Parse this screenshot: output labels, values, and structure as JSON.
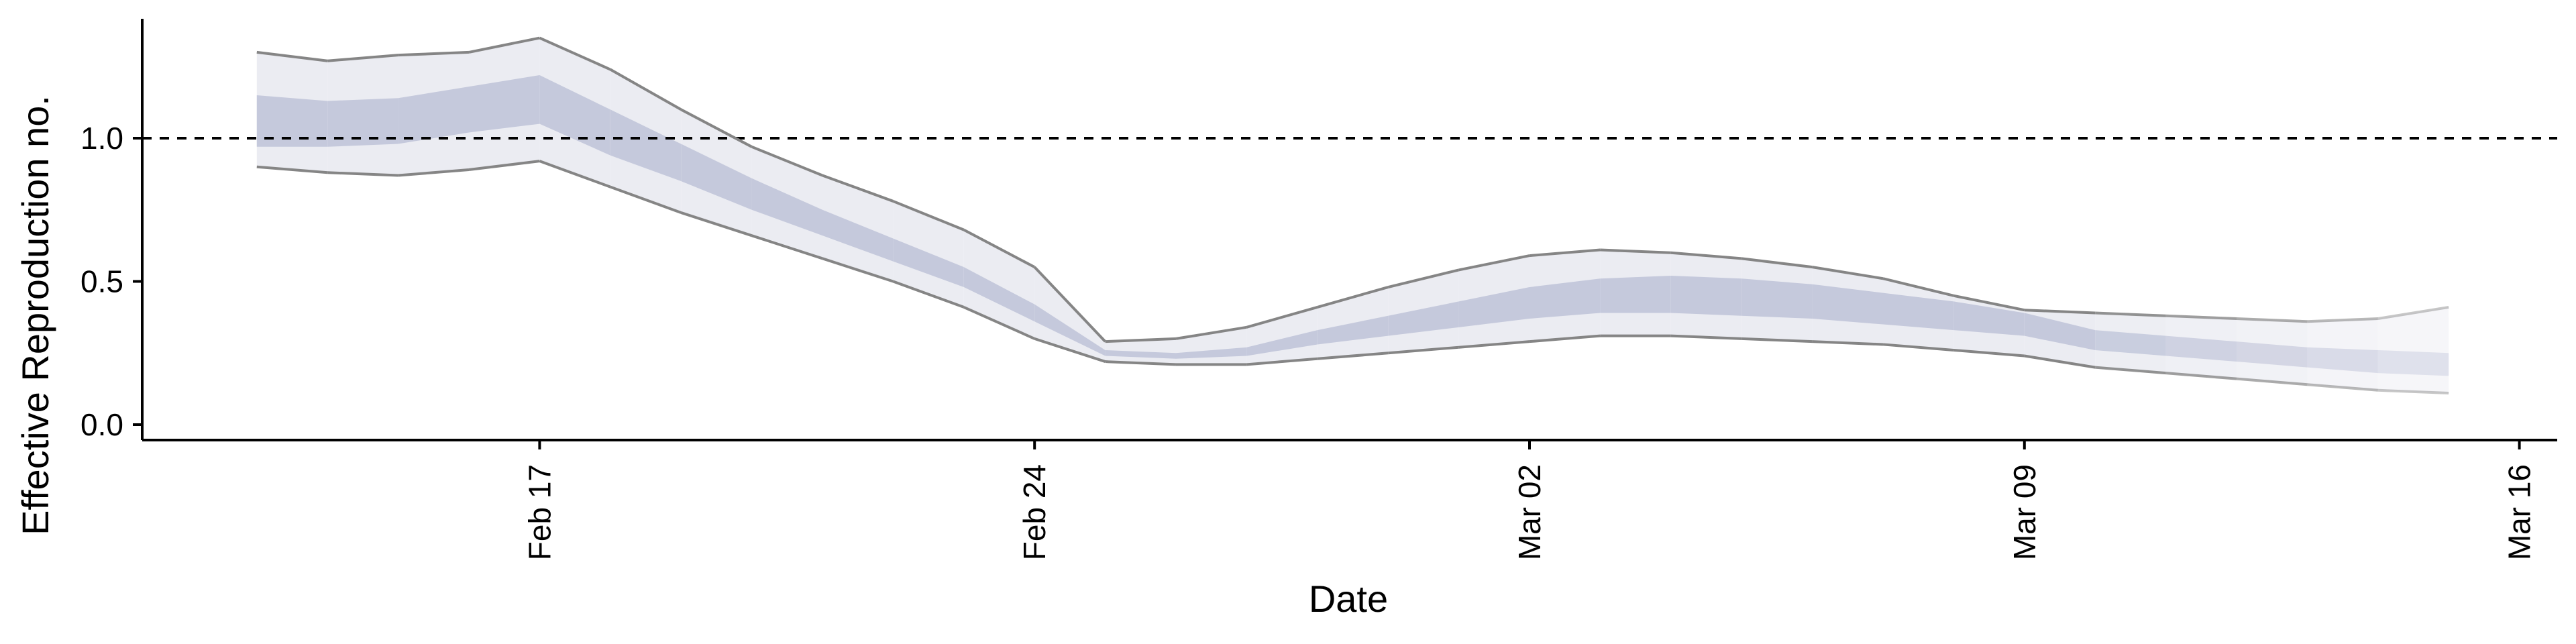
{
  "chart_data": {
    "type": "area",
    "title": "",
    "xlabel": "Date",
    "ylabel": "Effective Reproduction no.",
    "x_range": [
      "2020-02-11",
      "2020-03-16"
    ],
    "ylim": [
      0,
      1.4
    ],
    "grid": false,
    "legend": "none",
    "reference_line": {
      "y": 1.0,
      "style": "dashed"
    },
    "x_ticks": [
      {
        "date": "2020-02-17",
        "label": "Feb 17"
      },
      {
        "date": "2020-02-24",
        "label": "Feb 24"
      },
      {
        "date": "2020-03-02",
        "label": "Mar 02"
      },
      {
        "date": "2020-03-09",
        "label": "Mar 09"
      },
      {
        "date": "2020-03-16",
        "label": "Mar 16"
      }
    ],
    "y_ticks": [
      {
        "value": 0.0,
        "label": "0.0"
      },
      {
        "value": 0.5,
        "label": "0.5"
      },
      {
        "value": 1.0,
        "label": "1.0"
      }
    ],
    "colors": {
      "inner_band": "#c5c9dc",
      "outer_band": "#ebecf2",
      "outer_edge": "#858585",
      "axis": "#000000"
    },
    "series": [
      {
        "x": [
          "2020-02-13",
          "2020-02-14",
          "2020-02-15",
          "2020-02-16",
          "2020-02-17",
          "2020-02-18",
          "2020-02-19",
          "2020-02-20",
          "2020-02-21",
          "2020-02-22",
          "2020-02-23",
          "2020-02-24",
          "2020-02-25",
          "2020-02-26",
          "2020-02-27",
          "2020-02-28",
          "2020-02-29",
          "2020-03-01",
          "2020-03-02",
          "2020-03-03",
          "2020-03-04",
          "2020-03-05",
          "2020-03-06",
          "2020-03-07",
          "2020-03-08",
          "2020-03-09",
          "2020-03-10",
          "2020-03-11",
          "2020-03-12",
          "2020-03-13",
          "2020-03-14",
          "2020-03-15"
        ],
        "outer_lower": [
          0.9,
          0.88,
          0.87,
          0.89,
          0.92,
          0.83,
          0.74,
          0.66,
          0.58,
          0.5,
          0.41,
          0.3,
          0.22,
          0.21,
          0.21,
          0.23,
          0.25,
          0.27,
          0.29,
          0.31,
          0.31,
          0.3,
          0.29,
          0.28,
          0.26,
          0.24,
          0.2,
          0.18,
          0.16,
          0.14,
          0.12,
          0.11
        ],
        "inner_lower": [
          0.97,
          0.97,
          0.98,
          1.02,
          1.05,
          0.94,
          0.85,
          0.75,
          0.66,
          0.57,
          0.48,
          0.36,
          0.24,
          0.23,
          0.24,
          0.28,
          0.31,
          0.34,
          0.37,
          0.39,
          0.39,
          0.38,
          0.37,
          0.35,
          0.33,
          0.31,
          0.26,
          0.24,
          0.22,
          0.2,
          0.18,
          0.17
        ],
        "inner_upper": [
          1.15,
          1.13,
          1.14,
          1.18,
          1.22,
          1.1,
          0.98,
          0.86,
          0.75,
          0.65,
          0.55,
          0.42,
          0.26,
          0.25,
          0.27,
          0.33,
          0.38,
          0.43,
          0.48,
          0.51,
          0.52,
          0.51,
          0.49,
          0.46,
          0.43,
          0.39,
          0.33,
          0.31,
          0.29,
          0.27,
          0.26,
          0.25
        ],
        "outer_upper": [
          1.3,
          1.27,
          1.29,
          1.3,
          1.35,
          1.24,
          1.1,
          0.97,
          0.87,
          0.78,
          0.68,
          0.55,
          0.29,
          0.3,
          0.34,
          0.41,
          0.48,
          0.54,
          0.59,
          0.61,
          0.6,
          0.58,
          0.55,
          0.51,
          0.45,
          0.4,
          0.39,
          0.38,
          0.37,
          0.36,
          0.37,
          0.41
        ]
      }
    ]
  }
}
